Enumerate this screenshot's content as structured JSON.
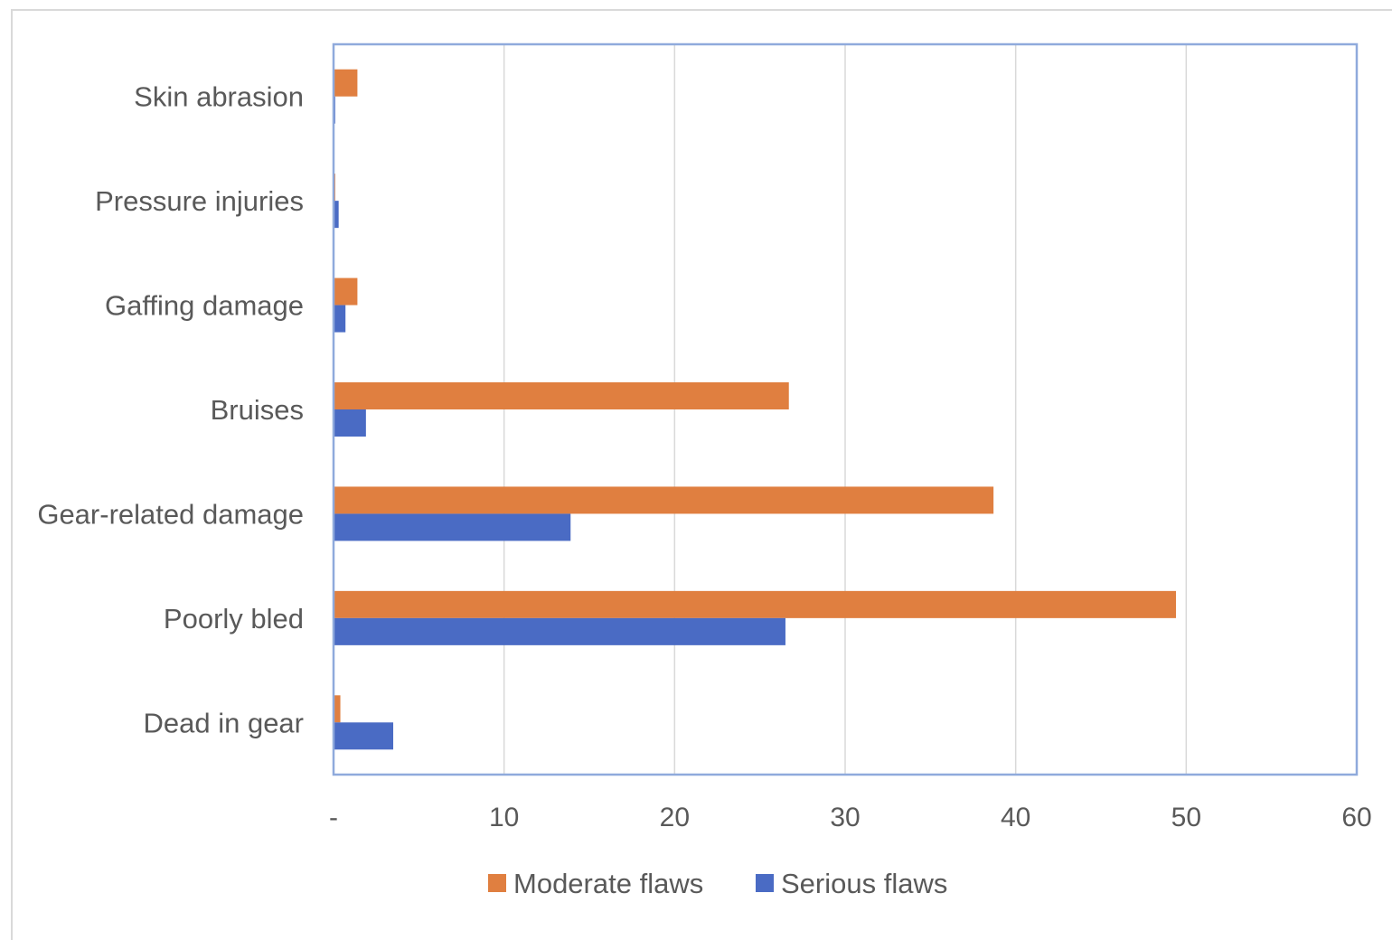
{
  "chart_data": {
    "type": "bar",
    "orientation": "horizontal",
    "title": "",
    "xlabel": "",
    "ylabel": "",
    "categories": [
      "Skin abrasion",
      "Pressure injuries",
      "Gaffing damage",
      "Bruises",
      "Gear-related damage",
      "Poorly bled",
      "Dead in gear"
    ],
    "series": [
      {
        "name": "Moderate flaws",
        "color": "#e07f40",
        "values": [
          1.4,
          0.1,
          1.4,
          26.7,
          38.7,
          49.4,
          0.4
        ]
      },
      {
        "name": "Serious flaws",
        "color": "#4a6bc4",
        "values": [
          0.1,
          0.3,
          0.7,
          1.9,
          13.9,
          26.5,
          3.5
        ]
      }
    ],
    "xlim": [
      0,
      60
    ],
    "x_ticks": [
      0,
      10,
      20,
      30,
      40,
      50,
      60
    ],
    "x_tick_labels": [
      "-",
      "10",
      "20",
      "30",
      "40",
      "50",
      "60"
    ],
    "grid": "vertical",
    "legend_position": "bottom",
    "plot_border_color": "#8faadc"
  }
}
